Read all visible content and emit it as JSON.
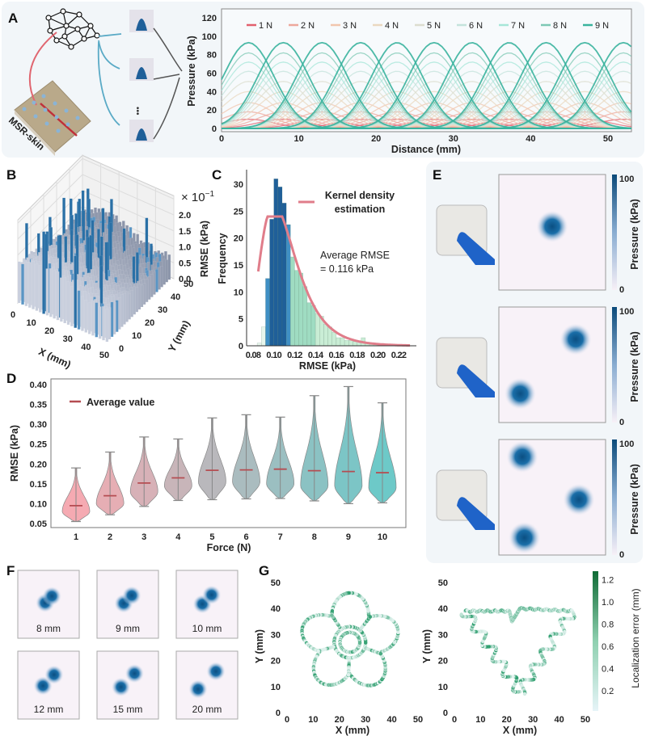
{
  "panels": {
    "a": "A",
    "b": "B",
    "c": "C",
    "d": "D",
    "e": "E",
    "f": "F",
    "g": "G"
  },
  "illustration": {
    "skin_label": "MSR-skin",
    "ellipsis": "•••"
  },
  "colors": {
    "forces": [
      "#e2606e",
      "#eda79b",
      "#f1c6ad",
      "#ead8c0",
      "#dcddcf",
      "#c4e3dc",
      "#a6e6d8",
      "#7dc8b4",
      "#39b39d"
    ],
    "hist_dark": "#1f5f99",
    "hist_mid": "#3f8fc4",
    "hist_light": "#c9edd5",
    "kde": "#e07d8a",
    "violin_start": "#f28e98",
    "violin_end": "#3cb7b6",
    "mean_line": "#b54d52",
    "heat": "#0b5a8e",
    "track": "#2e9e6e"
  },
  "chart_data": [
    {
      "id": "A",
      "type": "line",
      "xlabel": "Distance (mm)",
      "ylabel": "Pressure (kPa)",
      "xlim": [
        0,
        53
      ],
      "ylim": [
        0,
        125
      ],
      "xticks": [
        0,
        10,
        20,
        30,
        40,
        50
      ],
      "yticks": [
        0,
        20,
        40,
        60,
        80,
        100,
        120
      ],
      "legend": "top",
      "peak_positions_mm": [
        3.5,
        8,
        13,
        18,
        22.7,
        27.5,
        32.4,
        37.2,
        42,
        47,
        52
      ],
      "series": [
        {
          "name": "1 N",
          "peak": 10
        },
        {
          "name": "2 N",
          "peak": 18
        },
        {
          "name": "3 N",
          "peak": 28
        },
        {
          "name": "4 N",
          "peak": 40
        },
        {
          "name": "5 N",
          "peak": 51
        },
        {
          "name": "6 N",
          "peak": 62
        },
        {
          "name": "7 N",
          "peak": 72
        },
        {
          "name": "8 N",
          "peak": 82
        },
        {
          "name": "9 N",
          "peak": 93
        }
      ]
    },
    {
      "id": "B",
      "type": "bar3d",
      "xlabel": "X (mm)",
      "ylabel": "Y (mm)",
      "zlabel": "RMSE (kPa)",
      "zscale": "× 10",
      "zscale_exp": "−1",
      "xticks": [
        0,
        10,
        20,
        30,
        40,
        50
      ],
      "yticks": [
        0,
        10,
        20,
        30,
        40,
        50
      ],
      "zticks": [
        "0.0",
        "0.5",
        "1.0",
        "1.5",
        "2.0"
      ]
    },
    {
      "id": "C",
      "type": "bar",
      "xlabel": "RMSE (kPa)",
      "ylabel": "Frequency",
      "xlim": [
        0.08,
        0.235
      ],
      "ylim": [
        0,
        32
      ],
      "xticks": [
        "0.08",
        "0.10",
        "0.12",
        "0.14",
        "0.16",
        "0.18",
        "0.20",
        "0.22"
      ],
      "yticks": [
        0,
        5,
        10,
        15,
        20,
        25,
        30
      ],
      "bin_width": 0.004,
      "bin_starts": [
        0.084,
        0.088,
        0.092,
        0.096,
        0.1,
        0.104,
        0.108,
        0.112,
        0.116,
        0.12,
        0.124,
        0.128,
        0.132,
        0.136,
        0.14,
        0.144,
        0.148,
        0.152,
        0.156,
        0.16,
        0.164,
        0.168,
        0.172,
        0.176,
        0.18,
        0.184,
        0.188,
        0.192,
        0.196,
        0.2,
        0.204,
        0.208
      ],
      "frequencies": [
        0.5,
        3.5,
        12.5,
        23.5,
        31,
        29.5,
        26.5,
        22.5,
        16.5,
        14,
        13.5,
        11,
        8,
        7.5,
        6,
        5.5,
        4,
        3.5,
        2.5,
        1.5,
        1.5,
        1,
        1,
        0.8,
        0.5,
        1.5,
        0.5,
        0.5,
        0.3,
        0.2,
        0.2,
        0.1
      ],
      "kde_name": "Kernel density estimation",
      "kde_label_line1": "Kernel density",
      "kde_label_line2": "estimation",
      "annotation_line1": "Average RMSE",
      "annotation_line2": "= 0.116 kPa"
    },
    {
      "id": "D",
      "type": "violin",
      "xlabel": "Force (N)",
      "ylabel": "RMSE (kPa)",
      "ylim": [
        0.045,
        0.405
      ],
      "yticks": [
        "0.05",
        "0.10",
        "0.15",
        "0.20",
        "0.25",
        "0.30",
        "0.35",
        "0.40"
      ],
      "categories": [
        "1",
        "2",
        "3",
        "4",
        "5",
        "6",
        "7",
        "8",
        "9",
        "10"
      ],
      "min": [
        0.055,
        0.072,
        0.093,
        0.108,
        0.11,
        0.112,
        0.113,
        0.107,
        0.1,
        0.102
      ],
      "max": [
        0.19,
        0.23,
        0.268,
        0.263,
        0.316,
        0.324,
        0.318,
        0.372,
        0.395,
        0.354
      ],
      "mean": [
        0.095,
        0.12,
        0.152,
        0.165,
        0.184,
        0.185,
        0.187,
        0.183,
        0.181,
        0.178
      ],
      "mode": [
        0.08,
        0.1,
        0.13,
        0.145,
        0.155,
        0.155,
        0.15,
        0.145,
        0.145,
        0.14
      ],
      "legend": "Average value"
    },
    {
      "id": "E",
      "type": "heatmap",
      "colorbar_label": "Pressure (kPa)",
      "colorbar_min": "0",
      "colorbar_max": "100",
      "contacts": [
        [
          [
            0.5,
            0.55
          ]
        ],
        [
          [
            0.72,
            0.72
          ],
          [
            0.2,
            0.25
          ]
        ],
        [
          [
            0.22,
            0.85
          ],
          [
            0.75,
            0.48
          ],
          [
            0.24,
            0.15
          ]
        ]
      ]
    },
    {
      "id": "F",
      "type": "heatmap",
      "labels": [
        "8 mm",
        "9 mm",
        "10 mm",
        "12 mm",
        "15 mm",
        "20 mm"
      ]
    },
    {
      "id": "G",
      "type": "scatter",
      "xlabel": "X (mm)",
      "ylabel": "Y (mm)",
      "xlim": [
        0,
        50
      ],
      "ylim": [
        0,
        50
      ],
      "xticks": [
        0,
        10,
        20,
        30,
        40,
        50
      ],
      "yticks": [
        0,
        10,
        20,
        30,
        40,
        50
      ],
      "colorbar_label": "Localization error (mm)",
      "colorbar_ticks": [
        "0.2",
        "0.4",
        "0.6",
        "0.8",
        "1.0",
        "1.2"
      ],
      "shapes": [
        "flower",
        "triangle"
      ]
    }
  ]
}
